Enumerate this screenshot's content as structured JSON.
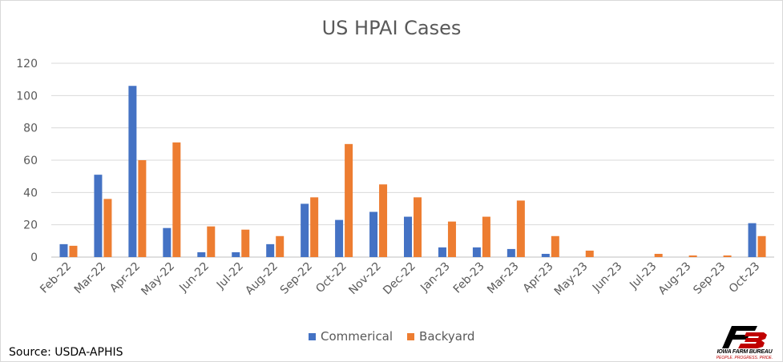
{
  "chart_data": {
    "type": "bar",
    "title": "US HPAI Cases",
    "xlabel": "",
    "ylabel": "",
    "ylim": [
      0,
      120
    ],
    "yticks": [
      0,
      20,
      40,
      60,
      80,
      100,
      120
    ],
    "grid": true,
    "legend_position": "bottom",
    "categories": [
      "Feb-22",
      "Mar-22",
      "Apr-22",
      "May-22",
      "Jun-22",
      "Jul-22",
      "Aug-22",
      "Sep-22",
      "Oct-22",
      "Nov-22",
      "Dec-22",
      "Jan-23",
      "Feb-23",
      "Mar-23",
      "Apr-23",
      "May-23",
      "Jun-23",
      "Jul-23",
      "Aug-23",
      "Sep-23",
      "Oct-23"
    ],
    "series": [
      {
        "name": "Commerical",
        "color": "#4472c4",
        "values": [
          8,
          51,
          106,
          18,
          3,
          3,
          8,
          33,
          23,
          28,
          25,
          6,
          6,
          5,
          2,
          0,
          0,
          0,
          0,
          0,
          21
        ]
      },
      {
        "name": "Backyard",
        "color": "#ed7d31",
        "values": [
          7,
          36,
          60,
          71,
          19,
          17,
          13,
          37,
          70,
          45,
          37,
          22,
          25,
          35,
          13,
          4,
          0,
          2,
          1,
          1,
          13
        ]
      }
    ]
  },
  "source": "Source: USDA-APHIS",
  "logo": {
    "mark": "FB",
    "name": "IOWA FARM BUREAU",
    "tagline": "PEOPLE. PROGRESS. PRIDE."
  }
}
